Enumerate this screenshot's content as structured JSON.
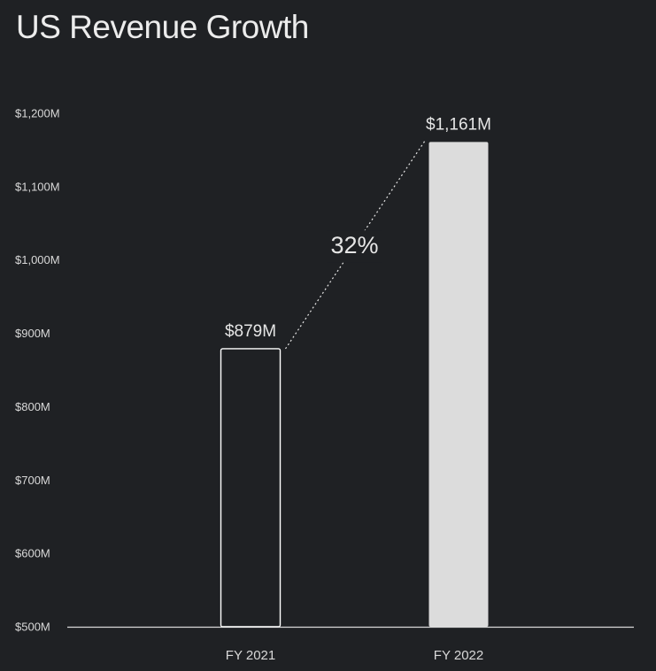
{
  "chart_data": {
    "type": "bar",
    "title": "US Revenue Growth",
    "xlabel": "",
    "ylabel": "",
    "categories": [
      "FY 2021",
      "FY 2022"
    ],
    "values": [
      879,
      1161
    ],
    "data_labels": [
      "$879M",
      "$1,161M"
    ],
    "ylim": [
      500,
      1200
    ],
    "yticks": [
      500,
      600,
      700,
      800,
      900,
      1000,
      1100,
      1200
    ],
    "ytick_labels": [
      "$500M",
      "$600M",
      "$700M",
      "$800M",
      "$900M",
      "$1,000M",
      "$1,100M",
      "$1,200M"
    ],
    "grid": false,
    "annotation": "32%",
    "bar_styles": [
      "outline",
      "filled"
    ],
    "colors": {
      "background": "#1f2124",
      "outline_bar_stroke": "#ffffff",
      "filled_bar": "#dcdcdc",
      "axis": "#d9d9d9",
      "text": "#e6e6e6"
    }
  }
}
